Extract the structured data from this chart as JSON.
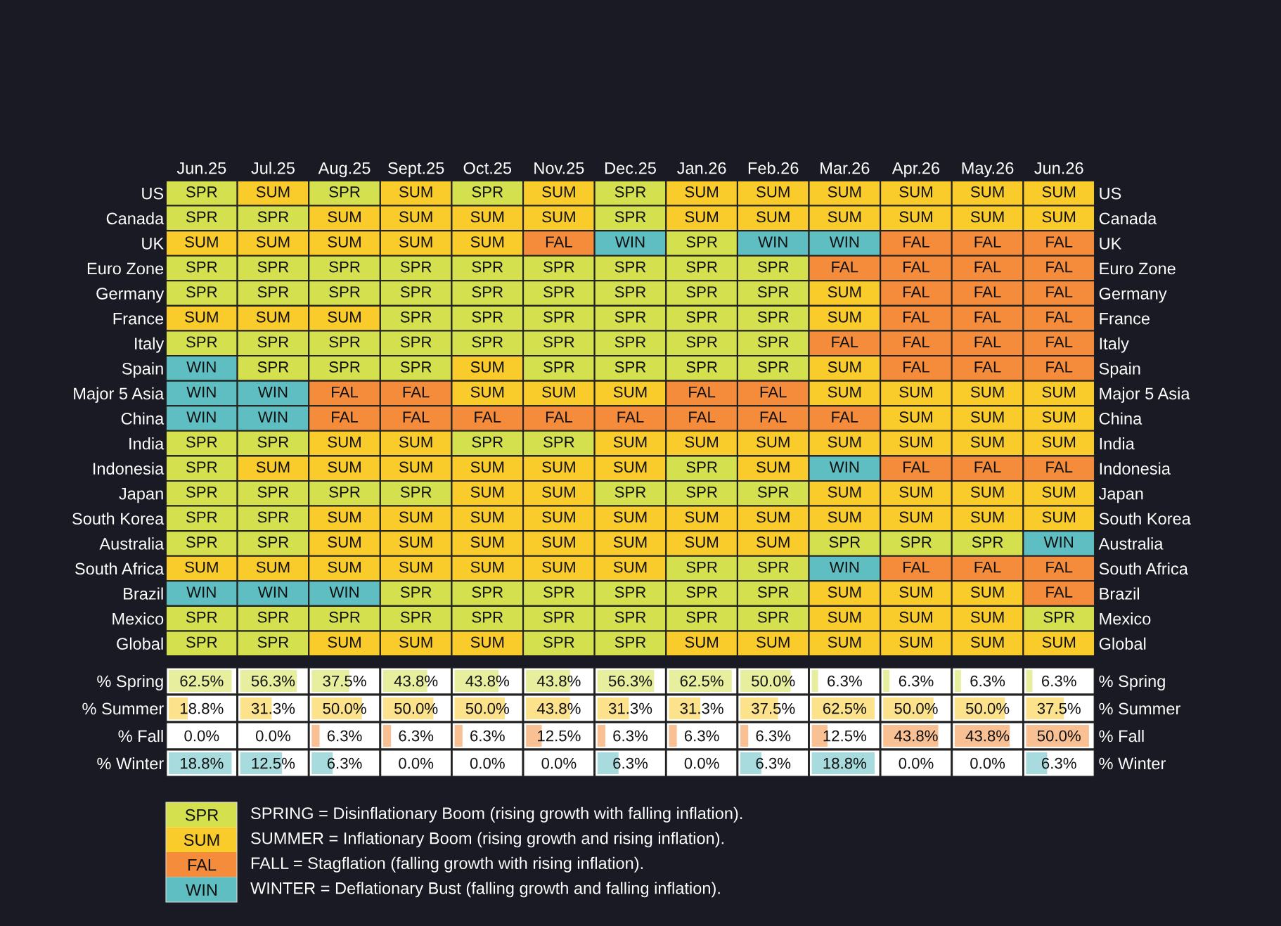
{
  "chart_data": [
    {
      "type": "heatmap",
      "categories": [
        "Jun.25",
        "Jul.25",
        "Aug.25",
        "Sept.25",
        "Oct.25",
        "Nov.25",
        "Dec.25",
        "Jan.26",
        "Feb.26",
        "Mar.26",
        "Apr.26",
        "May.26",
        "Jun.26"
      ],
      "y_categories": [
        "US",
        "Canada",
        "UK",
        "Euro Zone",
        "Germany",
        "France",
        "Italy",
        "Spain",
        "Major 5 Asia",
        "China",
        "India",
        "Indonesia",
        "Japan",
        "South Korea",
        "Australia",
        "South Africa",
        "Brazil",
        "Mexico",
        "Global"
      ],
      "y2_categories": [
        "US",
        "Canada",
        "UK",
        "Euro Zone",
        "Germany",
        "France",
        "Italy",
        "Spain",
        "Major 5 Asia",
        "China",
        "India",
        "Indonesia",
        "Japan",
        "South Korea",
        "Australia",
        "South Africa",
        "Brazil",
        "Mexico",
        "Global"
      ],
      "colors": [
        "#d4e04d",
        "#f9cb2b",
        "#f48c3c",
        "#5fbec1"
      ],
      "cells": [
        [
          "SPR",
          "SUM",
          "SPR",
          "SUM",
          "SPR",
          "SUM",
          "SPR",
          "SUM",
          "SUM",
          "SUM",
          "SUM",
          "SUM",
          "SUM"
        ],
        [
          "SPR",
          "SPR",
          "SUM",
          "SUM",
          "SUM",
          "SUM",
          "SPR",
          "SUM",
          "SUM",
          "SUM",
          "SUM",
          "SUM",
          "SUM"
        ],
        [
          "SUM",
          "SUM",
          "SUM",
          "SUM",
          "SUM",
          "FAL",
          "WIN",
          "SPR",
          "WIN",
          "WIN",
          "FAL",
          "FAL",
          "FAL"
        ],
        [
          "SPR",
          "SPR",
          "SPR",
          "SPR",
          "SPR",
          "SPR",
          "SPR",
          "SPR",
          "SPR",
          "FAL",
          "FAL",
          "FAL",
          "FAL"
        ],
        [
          "SPR",
          "SPR",
          "SPR",
          "SPR",
          "SPR",
          "SPR",
          "SPR",
          "SPR",
          "SPR",
          "SUM",
          "FAL",
          "FAL",
          "FAL"
        ],
        [
          "SUM",
          "SUM",
          "SUM",
          "SPR",
          "SPR",
          "SPR",
          "SPR",
          "SPR",
          "SPR",
          "SUM",
          "FAL",
          "FAL",
          "FAL"
        ],
        [
          "SPR",
          "SPR",
          "SPR",
          "SPR",
          "SPR",
          "SPR",
          "SPR",
          "SPR",
          "SPR",
          "FAL",
          "FAL",
          "FAL",
          "FAL"
        ],
        [
          "WIN",
          "SPR",
          "SPR",
          "SPR",
          "SUM",
          "SPR",
          "SPR",
          "SPR",
          "SPR",
          "SUM",
          "FAL",
          "FAL",
          "FAL"
        ],
        [
          "WIN",
          "WIN",
          "FAL",
          "FAL",
          "SUM",
          "SUM",
          "SUM",
          "FAL",
          "FAL",
          "SUM",
          "SUM",
          "SUM",
          "SUM"
        ],
        [
          "WIN",
          "WIN",
          "FAL",
          "FAL",
          "FAL",
          "FAL",
          "FAL",
          "FAL",
          "FAL",
          "FAL",
          "SUM",
          "SUM",
          "SUM"
        ],
        [
          "SPR",
          "SPR",
          "SUM",
          "SUM",
          "SPR",
          "SPR",
          "SUM",
          "SUM",
          "SUM",
          "SUM",
          "SUM",
          "SUM",
          "SUM"
        ],
        [
          "SPR",
          "SUM",
          "SUM",
          "SUM",
          "SUM",
          "SUM",
          "SUM",
          "SPR",
          "SUM",
          "WIN",
          "FAL",
          "FAL",
          "FAL"
        ],
        [
          "SPR",
          "SPR",
          "SPR",
          "SPR",
          "SUM",
          "SUM",
          "SPR",
          "SPR",
          "SPR",
          "SUM",
          "SUM",
          "SUM",
          "SUM"
        ],
        [
          "SPR",
          "SPR",
          "SUM",
          "SUM",
          "SUM",
          "SUM",
          "SUM",
          "SUM",
          "SUM",
          "SUM",
          "SUM",
          "SUM",
          "SUM"
        ],
        [
          "SPR",
          "SPR",
          "SUM",
          "SUM",
          "SUM",
          "SUM",
          "SUM",
          "SUM",
          "SUM",
          "SPR",
          "SPR",
          "SPR",
          "WIN"
        ],
        [
          "SUM",
          "SUM",
          "SUM",
          "SUM",
          "SUM",
          "SUM",
          "SUM",
          "SPR",
          "SPR",
          "WIN",
          "FAL",
          "FAL",
          "FAL"
        ],
        [
          "WIN",
          "WIN",
          "WIN",
          "SPR",
          "SPR",
          "SPR",
          "SPR",
          "SPR",
          "SPR",
          "SUM",
          "SUM",
          "SUM",
          "FAL"
        ],
        [
          "SPR",
          "SPR",
          "SPR",
          "SPR",
          "SPR",
          "SPR",
          "SPR",
          "SPR",
          "SPR",
          "SUM",
          "SUM",
          "SUM",
          "SPR"
        ],
        [
          "SPR",
          "SPR",
          "SUM",
          "SUM",
          "SUM",
          "SPR",
          "SPR",
          "SUM",
          "SUM",
          "SUM",
          "SUM",
          "SUM",
          "SUM"
        ]
      ],
      "clim": [
        -0.5,
        3.5
      ],
      "cticks": [
        {
          "value": 0,
          "label": "SPR"
        },
        {
          "value": 1,
          "label": "SUM"
        },
        {
          "value": 2,
          "label": "FAL"
        },
        {
          "value": 3,
          "label": "WIN"
        }
      ],
      "annotations": [
        "SPRING = Disinflationary Boom (rising growth with falling inflation).",
        "SUMMER = Inflationary Boom (rising growth and rising inflation).",
        "FALL = Stagflation (falling growth with rising inflation).",
        "WINTER = Deflationary Bust (falling growth and falling inflation)."
      ]
    },
    {
      "type": "heatmap",
      "categories": [
        null,
        null,
        null,
        null,
        null,
        null,
        null,
        null,
        null,
        null,
        null,
        null,
        null
      ],
      "tick_labels": "y",
      "y_categories": [
        "% Spring",
        "% Summer",
        "% Fall",
        "% Winter"
      ],
      "y2_categories": [
        "% Spring",
        "% Summer",
        "% Fall",
        "% Winter"
      ],
      "colors": [
        "#d4e04d",
        "#f9cb2b",
        "#f48c3c",
        "#5fbec1"
      ],
      "cells": [
        [
          62.5,
          56.3,
          37.5,
          43.8,
          43.8,
          43.8,
          56.3,
          62.5,
          50.0,
          6.3,
          6.3,
          6.3,
          6.3
        ],
        [
          18.8,
          31.3,
          50.0,
          50.0,
          50.0,
          43.8,
          31.3,
          31.3,
          37.5,
          62.5,
          50.0,
          50.0,
          37.5
        ],
        [
          0.0,
          0.0,
          6.3,
          6.3,
          6.3,
          12.5,
          6.3,
          6.3,
          6.3,
          12.5,
          43.8,
          43.8,
          50.0
        ],
        [
          18.8,
          12.5,
          6.3,
          0.0,
          0.0,
          0.0,
          6.3,
          0.0,
          6.3,
          18.8,
          0.0,
          0.0,
          6.3
        ]
      ],
      "cell_labels": [
        [
          "62.5%",
          "56.3%",
          "37.5%",
          "43.8%",
          "43.8%",
          "43.8%",
          "56.3%",
          "62.5%",
          "50.0%",
          "6.3%",
          "6.3%",
          "6.3%",
          "6.3%"
        ],
        [
          "18.8%",
          "31.3%",
          "50.0%",
          "50.0%",
          "50.0%",
          "43.8%",
          "31.3%",
          "31.3%",
          "37.5%",
          "62.5%",
          "50.0%",
          "50.0%",
          "37.5%"
        ],
        [
          "0.0%",
          "0.0%",
          "6.3%",
          "6.3%",
          "6.3%",
          "12.5%",
          "6.3%",
          "6.3%",
          "6.3%",
          "12.5%",
          "43.8%",
          "43.8%",
          "50.0%"
        ],
        [
          "18.8%",
          "12.5%",
          "6.3%",
          "0.0%",
          "0.0%",
          "0.0%",
          "6.3%",
          "0.0%",
          "6.3%",
          "18.8%",
          "0.0%",
          "0.0%",
          "6.3%"
        ]
      ]
    }
  ]
}
